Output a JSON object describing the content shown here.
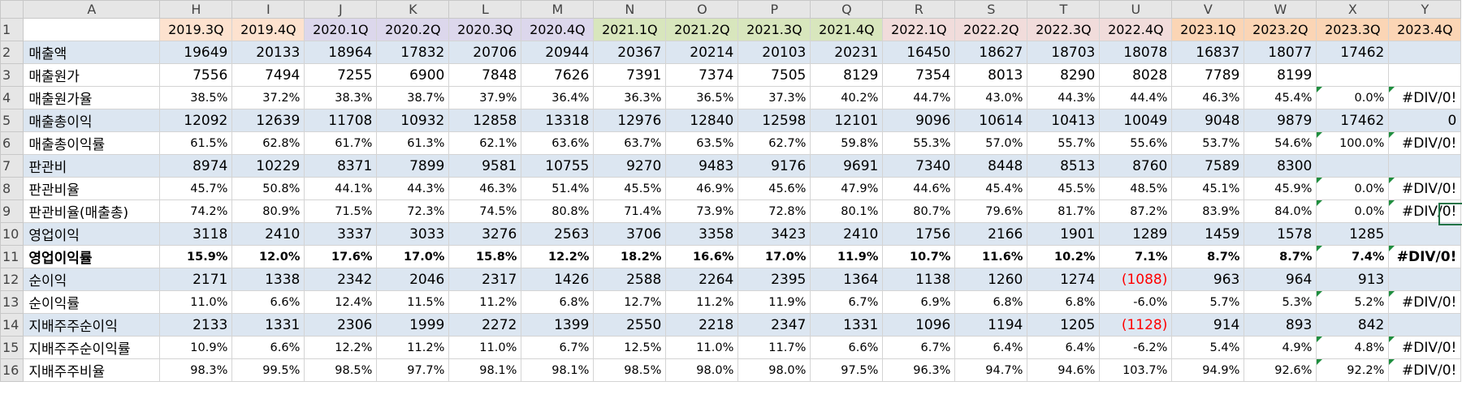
{
  "columns": [
    "A",
    "H",
    "I",
    "J",
    "K",
    "L",
    "M",
    "N",
    "O",
    "P",
    "Q",
    "R",
    "S",
    "T",
    "U",
    "V",
    "W",
    "X",
    "Y"
  ],
  "quarters": [
    {
      "label": "2019.3Q",
      "color": "#fde2cf"
    },
    {
      "label": "2019.4Q",
      "color": "#fde2cf"
    },
    {
      "label": "2020.1Q",
      "color": "#dcd7ec"
    },
    {
      "label": "2020.2Q",
      "color": "#dcd7ec"
    },
    {
      "label": "2020.3Q",
      "color": "#dcd7ec"
    },
    {
      "label": "2020.4Q",
      "color": "#dcd7ec"
    },
    {
      "label": "2021.1Q",
      "color": "#d8e6bd"
    },
    {
      "label": "2021.2Q",
      "color": "#d8e6bd"
    },
    {
      "label": "2021.3Q",
      "color": "#d8e6bd"
    },
    {
      "label": "2021.4Q",
      "color": "#d8e6bd"
    },
    {
      "label": "2022.1Q",
      "color": "#f1dcdb"
    },
    {
      "label": "2022.2Q",
      "color": "#f1dcdb"
    },
    {
      "label": "2022.3Q",
      "color": "#f1dcdb"
    },
    {
      "label": "2022.4Q",
      "color": "#f1dcdb"
    },
    {
      "label": "2023.1Q",
      "color": "#fbd5b5"
    },
    {
      "label": "2023.2Q",
      "color": "#fbd5b5"
    },
    {
      "label": "2023.3Q",
      "color": "#fbd5b5"
    },
    {
      "label": "2023.4Q",
      "color": "#fbd5b5"
    }
  ],
  "rows": [
    {
      "num": "2",
      "label": "매출액",
      "type": "num",
      "band": true,
      "values": [
        "19649",
        "20133",
        "18964",
        "17832",
        "20706",
        "20944",
        "20367",
        "20214",
        "20103",
        "20231",
        "16450",
        "18627",
        "18703",
        "18078",
        "16837",
        "18077",
        "17462",
        ""
      ]
    },
    {
      "num": "3",
      "label": "매출원가",
      "type": "num",
      "values": [
        "7556",
        "7494",
        "7255",
        "6900",
        "7848",
        "7626",
        "7391",
        "7374",
        "7505",
        "8129",
        "7354",
        "8013",
        "8290",
        "8028",
        "7789",
        "8199",
        "",
        ""
      ]
    },
    {
      "num": "4",
      "label": "매출원가율",
      "type": "pct",
      "flags": [
        16,
        17
      ],
      "values": [
        "38.5%",
        "37.2%",
        "38.3%",
        "38.7%",
        "37.9%",
        "36.4%",
        "36.3%",
        "36.5%",
        "37.3%",
        "40.2%",
        "44.7%",
        "43.0%",
        "44.3%",
        "44.4%",
        "46.3%",
        "45.4%",
        "0.0%",
        "#DIV/0!"
      ]
    },
    {
      "num": "5",
      "label": "매출총이익",
      "type": "num",
      "band": true,
      "values": [
        "12092",
        "12639",
        "11708",
        "10932",
        "12858",
        "13318",
        "12976",
        "12840",
        "12598",
        "12101",
        "9096",
        "10614",
        "10413",
        "10049",
        "9048",
        "9879",
        "17462",
        "0"
      ]
    },
    {
      "num": "6",
      "label": "매출총이익률",
      "type": "pct",
      "flags": [
        16,
        17
      ],
      "values": [
        "61.5%",
        "62.8%",
        "61.7%",
        "61.3%",
        "62.1%",
        "63.6%",
        "63.7%",
        "63.5%",
        "62.7%",
        "59.8%",
        "55.3%",
        "57.0%",
        "55.7%",
        "55.6%",
        "53.7%",
        "54.6%",
        "100.0%",
        "#DIV/0!"
      ]
    },
    {
      "num": "7",
      "label": "판관비",
      "type": "num",
      "band": true,
      "values": [
        "8974",
        "10229",
        "8371",
        "7899",
        "9581",
        "10755",
        "9270",
        "9483",
        "9176",
        "9691",
        "7340",
        "8448",
        "8513",
        "8760",
        "7589",
        "8300",
        "",
        ""
      ]
    },
    {
      "num": "8",
      "label": "판관비율",
      "type": "pct",
      "flags": [
        16,
        17
      ],
      "values": [
        "45.7%",
        "50.8%",
        "44.1%",
        "44.3%",
        "46.3%",
        "51.4%",
        "45.5%",
        "46.9%",
        "45.6%",
        "47.9%",
        "44.6%",
        "45.4%",
        "45.5%",
        "48.5%",
        "45.1%",
        "45.9%",
        "0.0%",
        "#DIV/0!"
      ]
    },
    {
      "num": "9",
      "label": "판관비율(매출총)",
      "type": "pct",
      "flags": [
        16,
        17
      ],
      "values": [
        "74.2%",
        "80.9%",
        "71.5%",
        "72.3%",
        "74.5%",
        "80.8%",
        "71.4%",
        "73.9%",
        "72.8%",
        "80.1%",
        "80.7%",
        "79.6%",
        "81.7%",
        "87.2%",
        "83.9%",
        "84.0%",
        "0.0%",
        "#DIV/0!"
      ]
    },
    {
      "num": "10",
      "label": "영업이익",
      "type": "num",
      "band": true,
      "values": [
        "3118",
        "2410",
        "3337",
        "3033",
        "3276",
        "2563",
        "3706",
        "3358",
        "3423",
        "2410",
        "1756",
        "2166",
        "1901",
        "1289",
        "1459",
        "1578",
        "1285",
        ""
      ]
    },
    {
      "num": "11",
      "label": "영업이익률",
      "type": "pct",
      "bold": true,
      "flags": [
        16,
        17
      ],
      "values": [
        "15.9%",
        "12.0%",
        "17.6%",
        "17.0%",
        "15.8%",
        "12.2%",
        "18.2%",
        "16.6%",
        "17.0%",
        "11.9%",
        "10.7%",
        "11.6%",
        "10.2%",
        "7.1%",
        "8.7%",
        "8.7%",
        "7.4%",
        "#DIV/0!"
      ]
    },
    {
      "num": "12",
      "label": "순이익",
      "type": "num",
      "band": true,
      "neg": [
        13
      ],
      "values": [
        "2171",
        "1338",
        "2342",
        "2046",
        "2317",
        "1426",
        "2588",
        "2264",
        "2395",
        "1364",
        "1138",
        "1260",
        "1274",
        "(1088)",
        "963",
        "964",
        "913",
        ""
      ]
    },
    {
      "num": "13",
      "label": "순이익률",
      "type": "pct",
      "flags": [
        16,
        17
      ],
      "values": [
        "11.0%",
        "6.6%",
        "12.4%",
        "11.5%",
        "11.2%",
        "6.8%",
        "12.7%",
        "11.2%",
        "11.9%",
        "6.7%",
        "6.9%",
        "6.8%",
        "6.8%",
        "-6.0%",
        "5.7%",
        "5.3%",
        "5.2%",
        "#DIV/0!"
      ]
    },
    {
      "num": "14",
      "label": "지배주주순이익",
      "type": "num",
      "band": true,
      "neg": [
        13
      ],
      "values": [
        "2133",
        "1331",
        "2306",
        "1999",
        "2272",
        "1399",
        "2550",
        "2218",
        "2347",
        "1331",
        "1096",
        "1194",
        "1205",
        "(1128)",
        "914",
        "893",
        "842",
        ""
      ]
    },
    {
      "num": "15",
      "label": "지배주주순이익률",
      "type": "pct",
      "flags": [
        16,
        17
      ],
      "values": [
        "10.9%",
        "6.6%",
        "12.2%",
        "11.2%",
        "11.0%",
        "6.7%",
        "12.5%",
        "11.0%",
        "11.7%",
        "6.6%",
        "6.7%",
        "6.4%",
        "6.4%",
        "-6.2%",
        "5.4%",
        "4.9%",
        "4.8%",
        "#DIV/0!"
      ]
    },
    {
      "num": "16",
      "label": "지배주주비율",
      "type": "pct",
      "flags": [
        16,
        17
      ],
      "values": [
        "98.3%",
        "99.5%",
        "98.5%",
        "97.7%",
        "98.1%",
        "98.1%",
        "98.5%",
        "98.0%",
        "98.0%",
        "97.5%",
        "96.3%",
        "94.7%",
        "94.6%",
        "103.7%",
        "94.9%",
        "92.6%",
        "92.2%",
        "#DIV/0!"
      ]
    }
  ]
}
